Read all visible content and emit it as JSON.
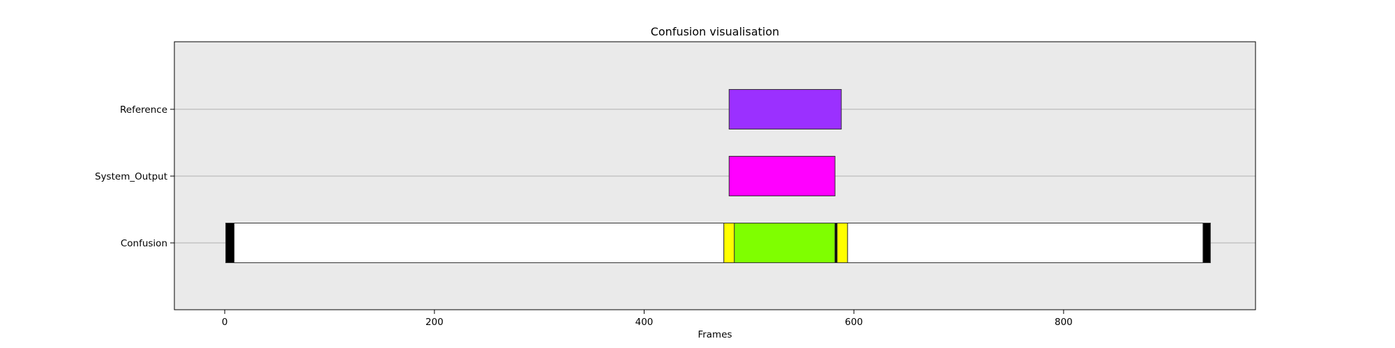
{
  "chart_data": {
    "type": "broken_barh",
    "title": "Confusion visualisation",
    "xlabel": "Frames",
    "ylabel": "",
    "xlim": [
      -48,
      983
    ],
    "xticks": [
      0,
      200,
      400,
      600,
      800
    ],
    "rows": [
      "Reference",
      "System_Output",
      "Confusion"
    ],
    "grid_y": true,
    "background": "#eaeaea",
    "series": [
      {
        "row": "Reference",
        "segments": [
          {
            "start": 481,
            "end": 588,
            "color": "#9b30ff"
          }
        ]
      },
      {
        "row": "System_Output",
        "segments": [
          {
            "start": 481,
            "end": 582,
            "color": "#ff00ff"
          }
        ]
      },
      {
        "row": "Confusion",
        "segments": [
          {
            "start": 1,
            "end": 9,
            "color": "#000000"
          },
          {
            "start": 9,
            "end": 476,
            "color": "#ffffff"
          },
          {
            "start": 476,
            "end": 486,
            "color": "#ffff00"
          },
          {
            "start": 486,
            "end": 582,
            "color": "#7fff00"
          },
          {
            "start": 582,
            "end": 584,
            "color": "#000000"
          },
          {
            "start": 584,
            "end": 594,
            "color": "#ffff00"
          },
          {
            "start": 594,
            "end": 933,
            "color": "#ffffff"
          },
          {
            "start": 933,
            "end": 940,
            "color": "#000000"
          }
        ]
      }
    ]
  }
}
